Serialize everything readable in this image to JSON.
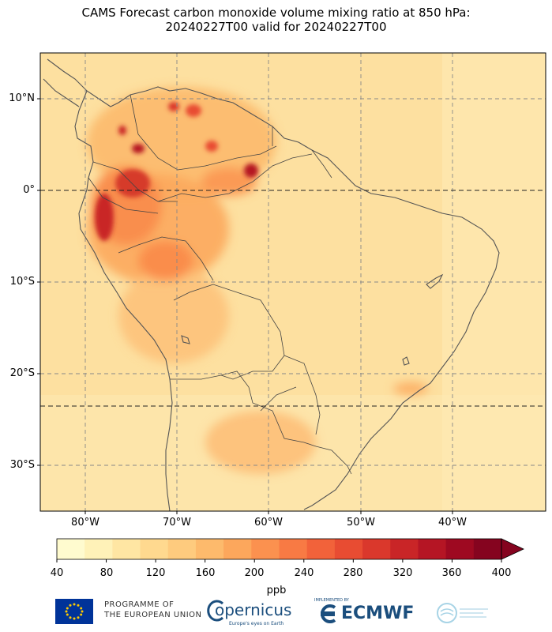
{
  "title": {
    "line1": "CAMS Forecast carbon monoxide volume mixing ratio at 850 hPa:",
    "line2": "20240227T00 valid for 20240227T00"
  },
  "map": {
    "lat_labels": [
      "10°N",
      "0°",
      "10°S",
      "20°S",
      "30°S"
    ],
    "lon_labels": [
      "80°W",
      "70°W",
      "60°W",
      "50°W",
      "40°W"
    ],
    "extent": {
      "lon_min": -85,
      "lon_max": -30,
      "lat_min": -35,
      "lat_max": 15
    },
    "special_lines": [
      "Equator",
      "Tropic of Capricorn"
    ],
    "grid": true
  },
  "colorbar": {
    "unit": "ppb",
    "ticks": [
      "40",
      "80",
      "120",
      "160",
      "200",
      "240",
      "280",
      "320",
      "360",
      "400"
    ],
    "min": 40,
    "max": 400,
    "extend": "max",
    "colors": [
      "#fffbcf",
      "#fff2b8",
      "#ffe6a3",
      "#ffd98f",
      "#fecb7e",
      "#fdba6c",
      "#fca75c",
      "#fb914f",
      "#f87a44",
      "#f2623a",
      "#e84c32",
      "#da382c",
      "#c92527",
      "#b51524",
      "#9e0921",
      "#85041f"
    ]
  },
  "logos": {
    "eu_line1": "PROGRAMME OF",
    "eu_line2": "THE EUROPEAN UNION",
    "copernicus": "opernicus",
    "copernicus_sub": "Europe's eyes on Earth",
    "ecmwf_small": "IMPLEMENTED BY",
    "ecmwf": "ECMWF"
  }
}
